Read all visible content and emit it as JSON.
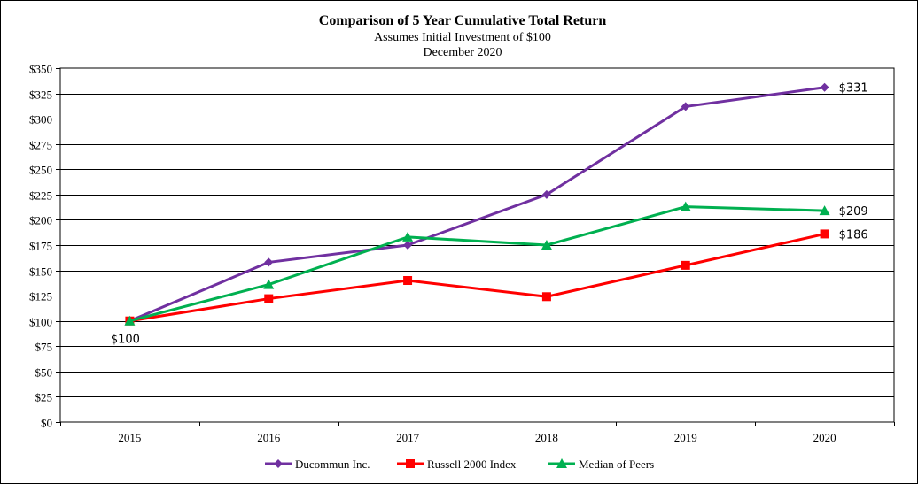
{
  "chart_data": {
    "type": "line",
    "title": "Comparison of 5 Year Cumulative Total Return",
    "subtitle_lines": [
      "Assumes Initial Investment of $100",
      "December 2020"
    ],
    "categories": [
      "2015",
      "2016",
      "2017",
      "2018",
      "2019",
      "2020"
    ],
    "ylim": [
      0,
      350
    ],
    "y_ticks": [
      0,
      25,
      50,
      75,
      100,
      125,
      150,
      175,
      200,
      225,
      250,
      275,
      300,
      325,
      350
    ],
    "y_tick_labels": [
      "$0",
      "$25",
      "$50",
      "$75",
      "$100",
      "$125",
      "$150",
      "$175",
      "$200",
      "$225",
      "$250",
      "$275",
      "$300",
      "$325",
      "$350"
    ],
    "grid": true,
    "legend_position": "bottom",
    "series": [
      {
        "name": "Ducommun Inc.",
        "color": "#7030A0",
        "marker": "diamond",
        "values": [
          100,
          158,
          175,
          225,
          312,
          331
        ]
      },
      {
        "name": "Russell 2000 Index",
        "color": "#FF0000",
        "marker": "square",
        "values": [
          100,
          122,
          140,
          124,
          155,
          186
        ]
      },
      {
        "name": "Median of Peers",
        "color": "#00B050",
        "marker": "triangle",
        "values": [
          100,
          136,
          183,
          175,
          213,
          209
        ]
      }
    ],
    "annotations": [
      {
        "text": "$331",
        "series": 0,
        "index": 5
      },
      {
        "text": "$209",
        "series": 2,
        "index": 5
      },
      {
        "text": "$186",
        "series": 1,
        "index": 5
      },
      {
        "text": "$100",
        "series": 0,
        "index": 0
      }
    ]
  }
}
